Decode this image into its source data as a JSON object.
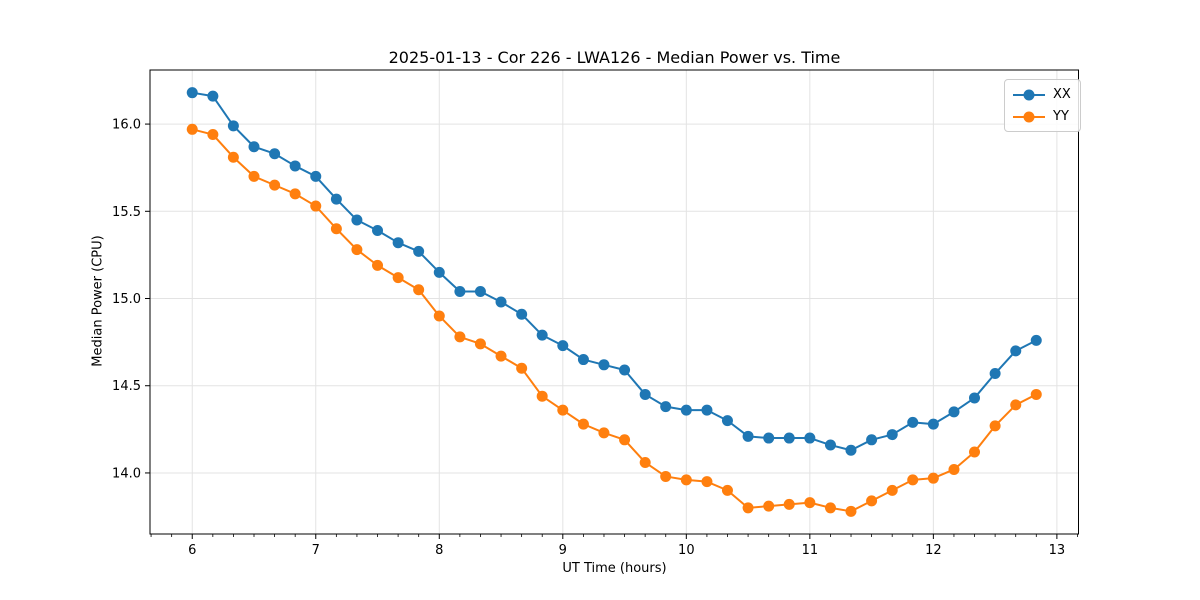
{
  "chart_data": {
    "type": "line",
    "title": "2025-01-13 - Cor 226 - LWA126 - Median Power vs. Time",
    "xlabel": "UT Time (hours)",
    "ylabel": "Median Power (CPU)",
    "xlim": [
      5.658,
      13.175
    ],
    "ylim": [
      13.65,
      16.31
    ],
    "x_major_ticks": [
      6,
      7,
      8,
      9,
      10,
      11,
      12,
      13
    ],
    "x_tick_labels": [
      "6",
      "7",
      "8",
      "9",
      "10",
      "11",
      "12",
      "13"
    ],
    "x_minor_tick_step_minutes": 10,
    "y_major_ticks": [
      14.0,
      14.5,
      15.0,
      15.5,
      16.0
    ],
    "y_tick_labels": [
      "14.0",
      "14.5",
      "15.0",
      "15.5",
      "16.0"
    ],
    "grid": true,
    "legend_position": "upper right",
    "marker": "circle",
    "x": [
      6.0,
      6.167,
      6.333,
      6.5,
      6.667,
      6.833,
      7.0,
      7.167,
      7.333,
      7.5,
      7.667,
      7.833,
      8.0,
      8.167,
      8.333,
      8.5,
      8.667,
      8.833,
      9.0,
      9.167,
      9.333,
      9.5,
      9.667,
      9.833,
      10.0,
      10.167,
      10.333,
      10.5,
      10.667,
      10.833,
      11.0,
      11.167,
      11.333,
      11.5,
      11.667,
      11.833,
      12.0,
      12.167,
      12.333,
      12.5,
      12.667,
      12.833
    ],
    "series": [
      {
        "name": "XX",
        "color": "#1f77b4",
        "values": [
          16.18,
          16.16,
          15.99,
          15.87,
          15.83,
          15.76,
          15.7,
          15.57,
          15.45,
          15.39,
          15.32,
          15.27,
          15.15,
          15.04,
          15.04,
          14.98,
          14.91,
          14.79,
          14.73,
          14.65,
          14.62,
          14.59,
          14.45,
          14.38,
          14.36,
          14.36,
          14.3,
          14.21,
          14.2,
          14.2,
          14.2,
          14.16,
          14.13,
          14.19,
          14.22,
          14.29,
          14.28,
          14.35,
          14.43,
          14.57,
          14.7,
          14.76
        ]
      },
      {
        "name": "YY",
        "color": "#ff7f0e",
        "values": [
          15.97,
          15.94,
          15.81,
          15.7,
          15.65,
          15.6,
          15.53,
          15.4,
          15.28,
          15.19,
          15.12,
          15.05,
          14.9,
          14.78,
          14.74,
          14.67,
          14.6,
          14.44,
          14.36,
          14.28,
          14.23,
          14.19,
          14.06,
          13.98,
          13.96,
          13.95,
          13.9,
          13.8,
          13.81,
          13.82,
          13.83,
          13.8,
          13.78,
          13.84,
          13.9,
          13.96,
          13.97,
          14.02,
          14.12,
          14.27,
          14.39,
          14.45
        ]
      }
    ]
  },
  "colors": {
    "grid": "#e3e3e3",
    "spine": "#000000",
    "tick": "#000000",
    "background": "#ffffff"
  }
}
